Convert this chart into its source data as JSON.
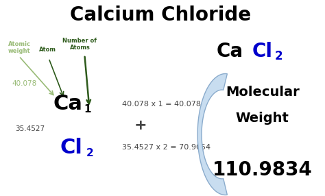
{
  "title": "Calcium Chloride",
  "title_fontsize": 20,
  "title_color": "#000000",
  "bg_color": "#ffffff",
  "ca_symbol": "Ca",
  "ca_subscript": "1",
  "cl_symbol": "Cl",
  "cl_subscript": "2",
  "ca_color": "#000000",
  "cl_color": "#0000cc",
  "ca_fontsize": 22,
  "cl_fontsize": 22,
  "ca_weight": "40.078",
  "cl_weight": "35.4527",
  "ca_weight_color": "#99bb77",
  "cl_weight_color": "#444444",
  "ca_calc": "40.078 x 1 = 40.078",
  "cl_calc": "35.4527 x 2 = 70.9054",
  "calc_fontsize": 8,
  "calc_color": "#444444",
  "plus_symbol": "+",
  "plus_fontsize": 16,
  "label_atomic_weight": "Atomic\nweight",
  "label_atom": "Atom",
  "label_num_atoms": "Number of\nAtoms",
  "label_fontsize": 6,
  "label_color_light": "#99bb77",
  "label_color_dark": "#2d5a1b",
  "arrow_light_color": "#99bb77",
  "arrow_dark_color": "#2d5a1b",
  "cacl2_fontsize": 20,
  "cacl2_sub_fontsize": 12,
  "cacl2_color_ca": "#000000",
  "cacl2_color_cl": "#0000cc",
  "mol_weight_label1": "Molecular",
  "mol_weight_label2": "Weight",
  "mol_weight_fontsize": 14,
  "mol_weight_color": "#000000",
  "result": "110.9834",
  "result_fontsize": 20,
  "result_color": "#000000",
  "bracket_fill": "#c8ddf0",
  "bracket_edge": "#8aabcc"
}
